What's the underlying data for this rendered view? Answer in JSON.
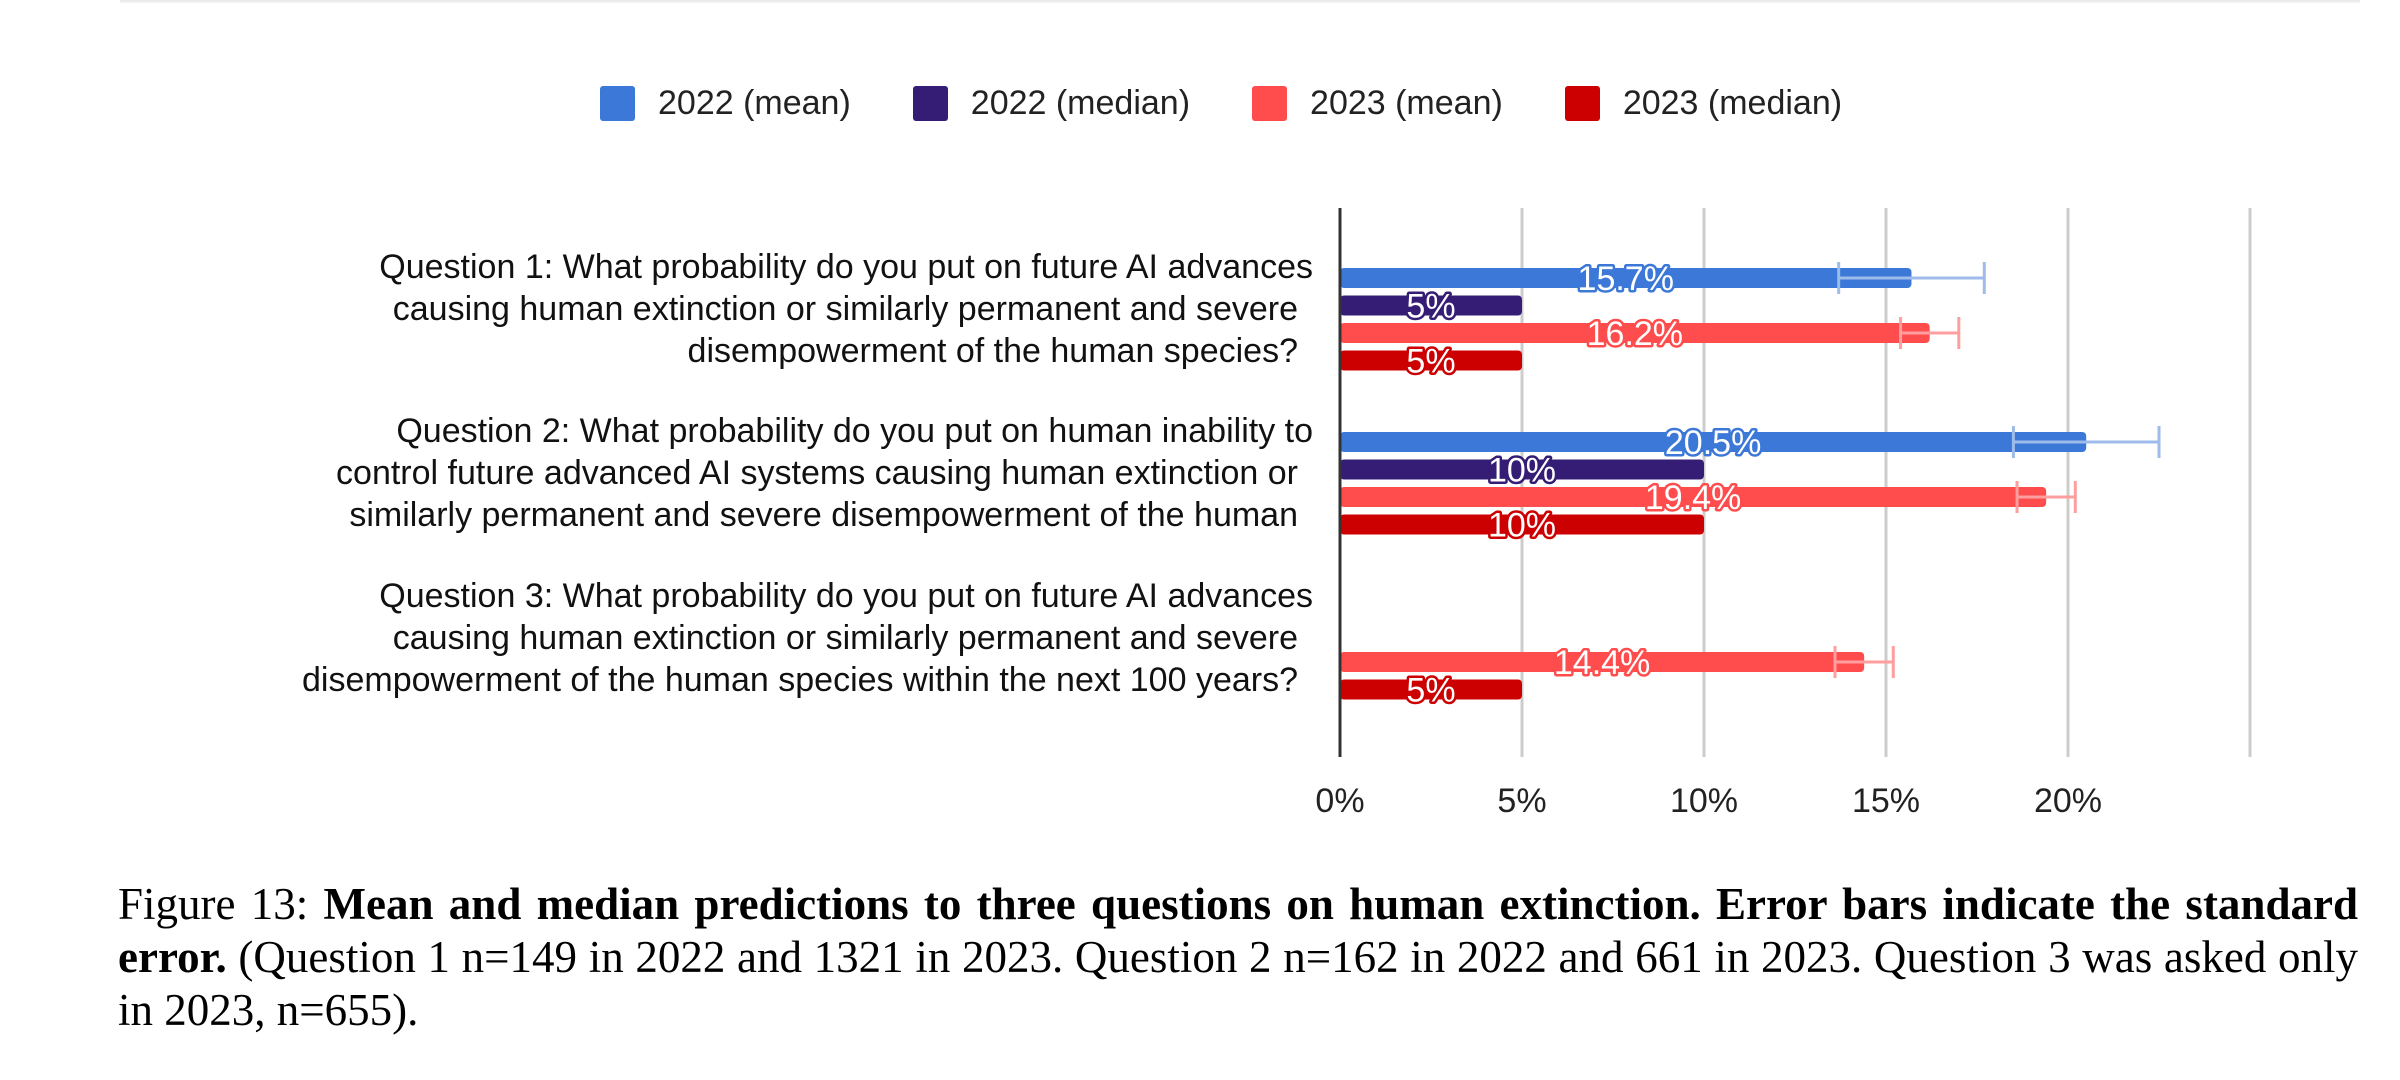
{
  "chart_data": {
    "type": "bar",
    "orientation": "horizontal",
    "title": "",
    "xlabel": "",
    "ylabel": "",
    "xlim": [
      0,
      25
    ],
    "x_ticks": [
      "0%",
      "5%",
      "10%",
      "15%",
      "20%"
    ],
    "grid": true,
    "legend_position": "top",
    "series": [
      {
        "key": "m22",
        "name": "2022 (mean)",
        "color": "#3c78d8"
      },
      {
        "key": "d22",
        "name": "2022 (median)",
        "color": "#351c75"
      },
      {
        "key": "m23",
        "name": "2023 (mean)",
        "color": "#ff4d4d"
      },
      {
        "key": "d23",
        "name": "2023 (median)",
        "color": "#cc0000"
      }
    ],
    "categories": [
      {
        "lines": [
          "Question 1: What probability do you put on future AI advances",
          "causing human extinction or similarly permanent and severe",
          "disempowerment of the human species?"
        ],
        "bars": [
          {
            "series": "m22",
            "value": 15.7,
            "label": "15.7%",
            "err": 2.0
          },
          {
            "series": "d22",
            "value": 5,
            "label": "5%"
          },
          {
            "series": "m23",
            "value": 16.2,
            "label": "16.2%",
            "err": 0.8
          },
          {
            "series": "d23",
            "value": 5,
            "label": "5%"
          }
        ]
      },
      {
        "lines": [
          "Question 2: What probability do you put on human inability to",
          "control future advanced AI systems causing human extinction or",
          "similarly permanent and severe disempowerment of the human"
        ],
        "bars": [
          {
            "series": "m22",
            "value": 20.5,
            "label": "20.5%",
            "err": 2.0
          },
          {
            "series": "d22",
            "value": 10,
            "label": "10%"
          },
          {
            "series": "m23",
            "value": 19.4,
            "label": "19.4%",
            "err": 0.8
          },
          {
            "series": "d23",
            "value": 10,
            "label": "10%"
          }
        ]
      },
      {
        "lines": [
          "Question 3: What probability do you put on future AI advances",
          "causing human extinction or similarly permanent and severe",
          "disempowerment of the human species within the next 100 years?"
        ],
        "bars": [
          {
            "series": "m23",
            "value": 14.4,
            "label": "14.4%",
            "err": 0.8
          },
          {
            "series": "d23",
            "value": 5,
            "label": "5%"
          }
        ]
      }
    ]
  },
  "caption": {
    "prefix": "Figure 13: ",
    "bold": "Mean and median predictions to three questions on human extinction. Error bars indicate the standard error.",
    "rest": " (Question 1 n=149 in 2022 and 1321 in 2023. Question 2 n=162 in 2022 and 661 in 2023. Question 3 was asked only in 2023, n=655)."
  }
}
